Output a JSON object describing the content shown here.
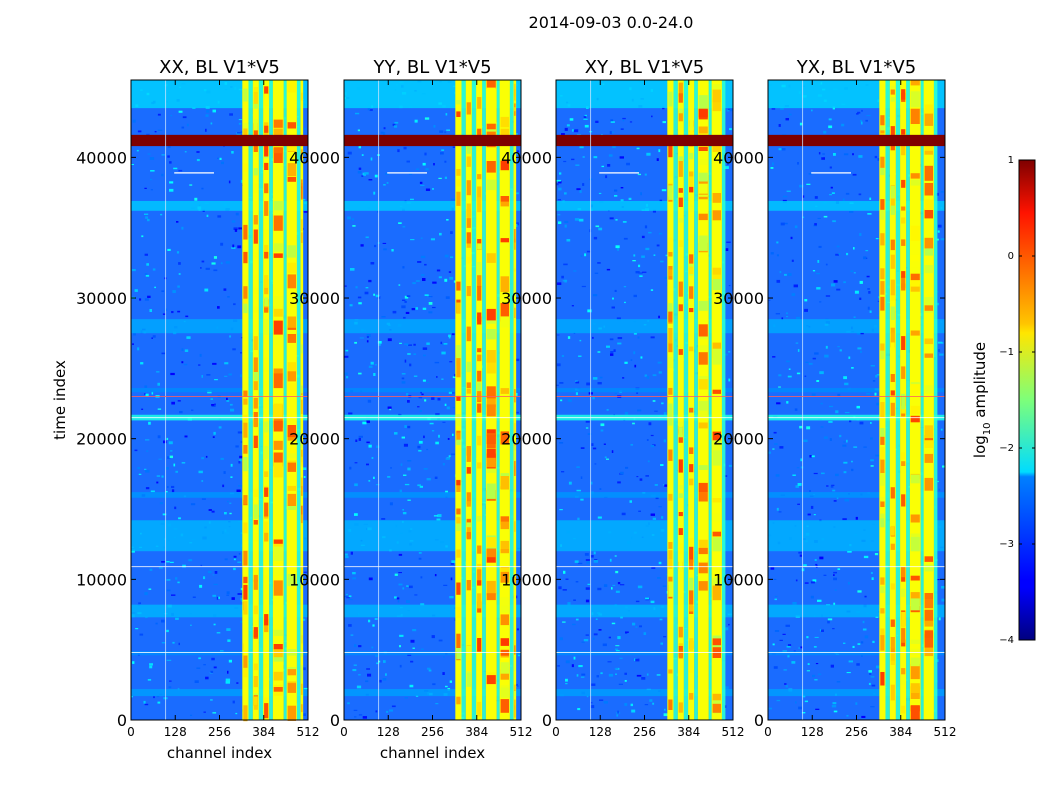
{
  "figure": {
    "suptitle": "2014-09-03 0.0-24.0"
  },
  "chart_data": [
    {
      "type": "heatmap",
      "title": "XX, BL V1*V5",
      "xlabel": "channel index",
      "ylabel": "time index",
      "xlim": [
        0,
        512
      ],
      "ylim": [
        0,
        45500
      ],
      "xticks": [
        "0",
        "128",
        "256",
        "384",
        "512"
      ],
      "yticks": [
        "0",
        "10000",
        "20000",
        "30000",
        "40000"
      ],
      "rfi_band_channels": [
        [
          322,
          340
        ],
        [
          352,
          370
        ],
        [
          382,
          400
        ],
        [
          410,
          442
        ],
        [
          450,
          480
        ],
        [
          490,
          498
        ]
      ],
      "saturated_time_band": [
        40800,
        41600
      ]
    },
    {
      "type": "heatmap",
      "title": "YY, BL V1*V5",
      "xlabel": "channel index",
      "ylabel": "",
      "xlim": [
        0,
        512
      ],
      "ylim": [
        0,
        45500
      ],
      "xticks": [
        "0",
        "128",
        "256",
        "384",
        "512"
      ],
      "yticks": [
        "0",
        "10000",
        "20000",
        "30000",
        "40000"
      ],
      "rfi_band_channels": [
        [
          322,
          340
        ],
        [
          352,
          370
        ],
        [
          382,
          400
        ],
        [
          410,
          442
        ],
        [
          450,
          480
        ],
        [
          490,
          498
        ]
      ],
      "saturated_time_band": [
        40800,
        41600
      ]
    },
    {
      "type": "heatmap",
      "title": "XY, BL V1*V5",
      "xlabel": "",
      "ylabel": "",
      "xlim": [
        0,
        512
      ],
      "ylim": [
        0,
        45500
      ],
      "xticks": [
        "0",
        "128",
        "256",
        "384",
        "512"
      ],
      "yticks": [
        "0",
        "10000",
        "20000",
        "30000",
        "40000"
      ],
      "rfi_band_channels": [
        [
          322,
          340
        ],
        [
          352,
          370
        ],
        [
          382,
          400
        ],
        [
          410,
          442
        ],
        [
          450,
          480
        ]
      ],
      "saturated_time_band": [
        40800,
        41600
      ]
    },
    {
      "type": "heatmap",
      "title": "YX, BL V1*V5",
      "xlabel": "",
      "ylabel": "",
      "xlim": [
        0,
        512
      ],
      "ylim": [
        0,
        45500
      ],
      "xticks": [
        "0",
        "128",
        "256",
        "384",
        "512"
      ],
      "yticks": [
        "0",
        "10000",
        "20000",
        "30000",
        "40000"
      ],
      "rfi_band_channels": [
        [
          322,
          340
        ],
        [
          352,
          370
        ],
        [
          382,
          400
        ],
        [
          410,
          442
        ],
        [
          450,
          480
        ]
      ],
      "saturated_time_band": [
        40800,
        41600
      ]
    }
  ],
  "colorbar": {
    "label": "log10 amplitude",
    "label_base": "log",
    "label_sub": "10",
    "label_rest": " amplitude",
    "range": [
      -4,
      1
    ],
    "ticks": [
      "1",
      "0",
      "−1",
      "−2",
      "−3",
      "−4"
    ],
    "colormap": "jet"
  }
}
